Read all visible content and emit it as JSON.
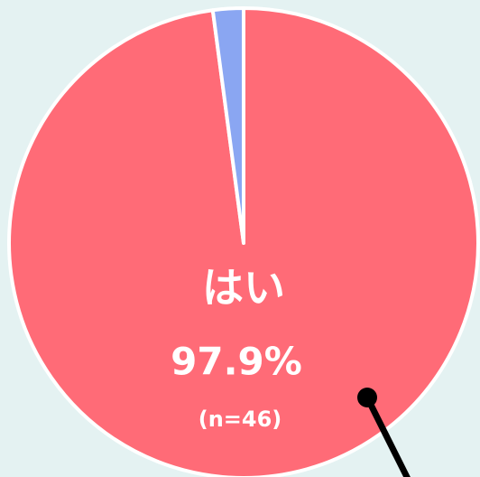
{
  "chart_data": {
    "type": "pie",
    "categories": [
      "はい",
      null
    ],
    "values": [
      97.9,
      2.1
    ],
    "value_labels": [
      "97.9%",
      null
    ],
    "colors": [
      "#ff6b77",
      "#8aa6f2"
    ],
    "annotation": "(n=46)"
  }
}
